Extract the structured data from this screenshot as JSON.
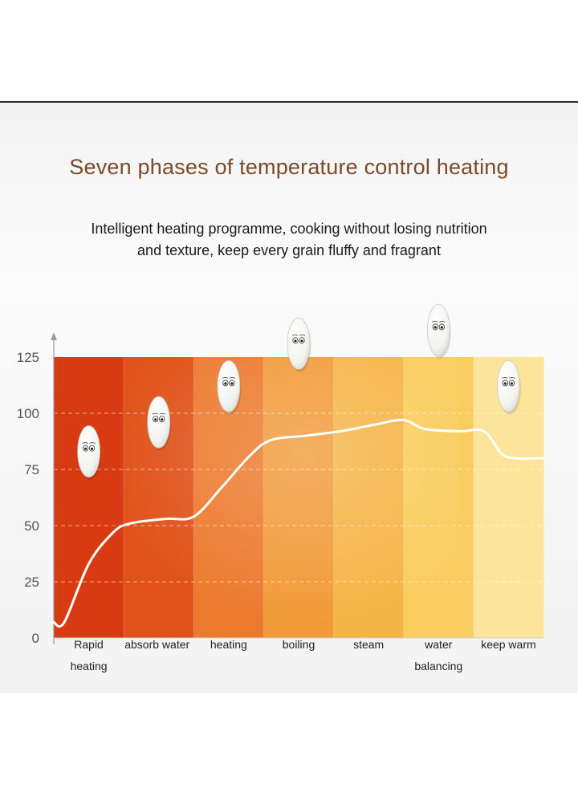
{
  "header": {
    "title": "Seven phases of temperature control heating",
    "subtitle_line1": "Intelligent heating programme, cooking without losing nutrition",
    "subtitle_line2": "and texture, keep every grain fluffy and fragrant"
  },
  "chart_data": {
    "type": "line",
    "title": "Seven phases of temperature control heating",
    "xlabel": "",
    "ylabel": "",
    "ylim": [
      0,
      125
    ],
    "yticks": [
      0,
      25,
      50,
      75,
      100,
      125
    ],
    "grid": true,
    "phases": [
      {
        "label": [
          "Rapid",
          "heating"
        ],
        "color": "#d83a12"
      },
      {
        "label": [
          "absorb water"
        ],
        "color": "#e0521a"
      },
      {
        "label": [
          "heating"
        ],
        "color": "#ec7a2e"
      },
      {
        "label": [
          "boiling"
        ],
        "color": "#f19a38"
      },
      {
        "label": [
          "steam"
        ],
        "color": "#f5b446"
      },
      {
        "label": [
          "water",
          "balancing"
        ],
        "color": "#f9cd5f"
      },
      {
        "label": [
          "keep warm"
        ],
        "color": "#fce59a"
      }
    ],
    "series": [
      {
        "name": "temperature",
        "color": "#ffffff",
        "points": [
          {
            "x": 0.0,
            "y": 7
          },
          {
            "x": 0.15,
            "y": 7
          },
          {
            "x": 0.5,
            "y": 33
          },
          {
            "x": 0.85,
            "y": 47
          },
          {
            "x": 1.1,
            "y": 51
          },
          {
            "x": 1.6,
            "y": 53
          },
          {
            "x": 2.0,
            "y": 54
          },
          {
            "x": 2.4,
            "y": 67
          },
          {
            "x": 2.8,
            "y": 81
          },
          {
            "x": 3.1,
            "y": 88
          },
          {
            "x": 3.6,
            "y": 90
          },
          {
            "x": 4.1,
            "y": 92
          },
          {
            "x": 4.6,
            "y": 95
          },
          {
            "x": 5.0,
            "y": 97
          },
          {
            "x": 5.3,
            "y": 93
          },
          {
            "x": 5.8,
            "y": 92
          },
          {
            "x": 6.15,
            "y": 92
          },
          {
            "x": 6.4,
            "y": 82
          },
          {
            "x": 6.6,
            "y": 80
          },
          {
            "x": 7.0,
            "y": 80
          }
        ]
      }
    ],
    "mascots": [
      {
        "phase": 0,
        "y": 83
      },
      {
        "phase": 1,
        "y": 96
      },
      {
        "phase": 2,
        "y": 112
      },
      {
        "phase": 3,
        "y": 131
      },
      {
        "phase": 5,
        "y": 137
      },
      {
        "phase": 6,
        "y": 112
      }
    ]
  }
}
